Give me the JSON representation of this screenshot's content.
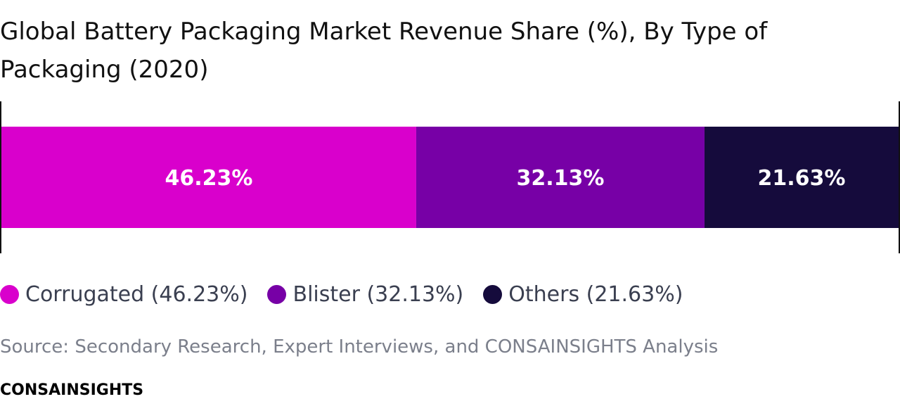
{
  "title": "Global Battery Packaging Market Revenue Share (%), By Type of Packaging (2020)",
  "chart_data": {
    "type": "bar",
    "orientation": "horizontal-stacked",
    "title": "Global Battery Packaging Market Revenue Share (%), By Type of Packaging (2020)",
    "categories": [
      "Corrugated",
      "Blister",
      "Others"
    ],
    "values": [
      46.23,
      32.13,
      21.63
    ],
    "data_labels": [
      "46.23%",
      "32.13%",
      "21.63%"
    ],
    "unit": "%",
    "colors": [
      "#d900cc",
      "#7700a6",
      "#150b3c"
    ],
    "xlim": [
      0,
      100
    ],
    "grid": false,
    "legend_position": "bottom-left"
  },
  "legend": [
    {
      "label": "Corrugated (46.23%)",
      "color": "#d900cc"
    },
    {
      "label": "Blister (32.13%)",
      "color": "#7700a6"
    },
    {
      "label": "Others (21.63%)",
      "color": "#150b3c"
    }
  ],
  "source": "Source: Secondary Research, Expert Interviews, and CONSAINSIGHTS Analysis",
  "brand": "CONSAINSIGHTS"
}
